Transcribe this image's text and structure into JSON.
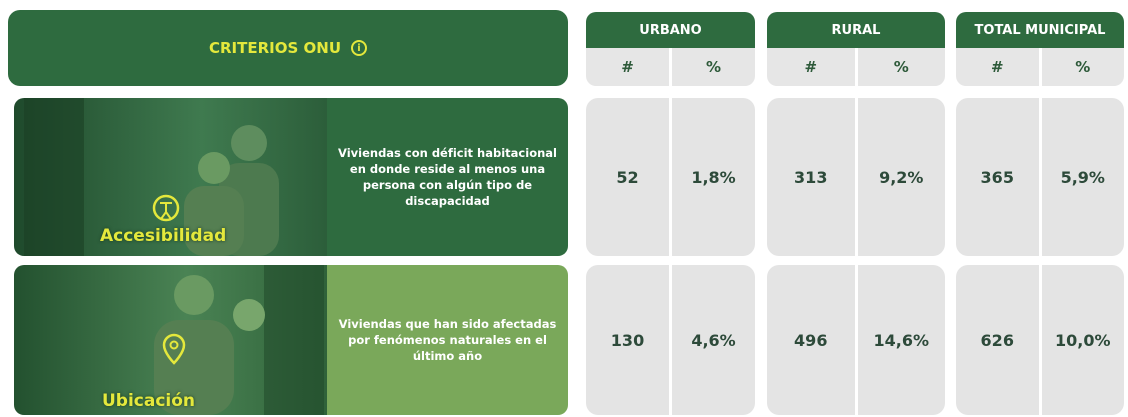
{
  "header": {
    "title": "CRITERIOS ONU"
  },
  "groups": [
    {
      "title": "URBANO",
      "columns": [
        "#",
        "%"
      ]
    },
    {
      "title": "RURAL",
      "columns": [
        "#",
        "%"
      ]
    },
    {
      "title": "TOTAL MUNICIPAL",
      "columns": [
        "#",
        "%"
      ]
    }
  ],
  "rows": [
    {
      "label": "Accesibilidad",
      "description": "Viviendas con déficit habitacional en donde reside al menos una persona con algún tipo de discapacidad",
      "values": [
        "52",
        "1,8%",
        "313",
        "9,2%",
        "365",
        "5,9%"
      ]
    },
    {
      "label": "Ubicación",
      "description": "Viviendas que han sido afectadas por fenómenos naturales en el último año",
      "values": [
        "130",
        "4,6%",
        "496",
        "14,6%",
        "626",
        "10,0%"
      ]
    }
  ]
}
